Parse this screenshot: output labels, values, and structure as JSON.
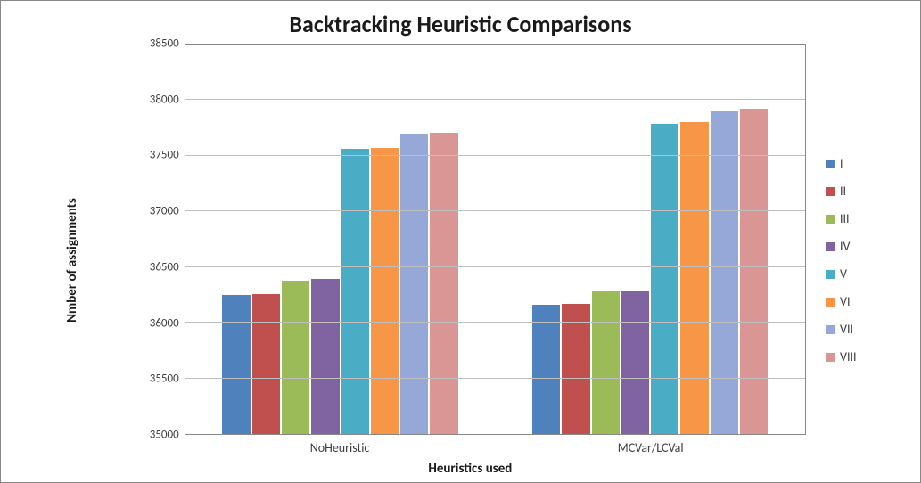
{
  "chart": {
    "title": "Backtracking Heuristic Comparisons",
    "title_fontsize": 26,
    "type": "bar",
    "xlabel": "Heuristics used",
    "ylabel": "Nmber of assignments",
    "axis_label_fontsize": 15,
    "categories": [
      "NoHeuristic",
      "MCVar/LCVal"
    ],
    "series": [
      {
        "name": "I",
        "color": "#4f81bd",
        "values": [
          36250,
          36160
        ]
      },
      {
        "name": "II",
        "color": "#c0504d",
        "values": [
          36260,
          36170
        ]
      },
      {
        "name": "III",
        "color": "#9bbb59",
        "values": [
          36380,
          36280
        ]
      },
      {
        "name": "IV",
        "color": "#8064a2",
        "values": [
          36390,
          36290
        ]
      },
      {
        "name": "V",
        "color": "#4bacc6",
        "values": [
          37560,
          37790
        ]
      },
      {
        "name": "VI",
        "color": "#f79646",
        "values": [
          37570,
          37800
        ]
      },
      {
        "name": "VII",
        "color": "#95a8d8",
        "values": [
          37700,
          37910
        ]
      },
      {
        "name": "VIII",
        "color": "#d99694",
        "values": [
          37710,
          37920
        ]
      }
    ],
    "ylim": [
      35000,
      38500
    ],
    "yticks": [
      35000,
      35500,
      36000,
      36500,
      37000,
      37500,
      38000,
      38500
    ],
    "grid_color": "#bfbfbf",
    "background_color": "#ffffff",
    "border_color": "#888888",
    "tick_fontsize": 13,
    "legend_fontsize": 14
  }
}
